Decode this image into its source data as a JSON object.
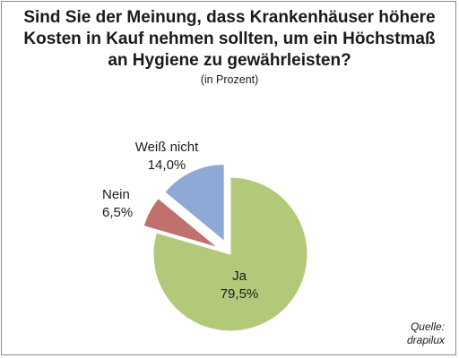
{
  "chart_data": {
    "type": "pie",
    "title_lines": [
      "Sind Sie der Meinung, dass Krankenhäuser höhere",
      "Kosten in Kauf nehmen sollten, um ein Höchstmaß",
      "an Hygiene zu gewährleisten?"
    ],
    "subtitle": "(in Prozent)",
    "slices": [
      {
        "label": "Ja",
        "value": 79.5,
        "value_label": "79,5%",
        "color": "#b3c97a",
        "exploded": false
      },
      {
        "label": "Nein",
        "value": 6.5,
        "value_label": "6,5%",
        "color": "#c0706d",
        "exploded": true
      },
      {
        "label": "Weiß nicht",
        "value": 14.0,
        "value_label": "14,0%",
        "color": "#8fa9d6",
        "exploded": true
      }
    ],
    "legend": "none"
  },
  "source": {
    "line1": "Quelle:",
    "line2": "drapilux"
  }
}
